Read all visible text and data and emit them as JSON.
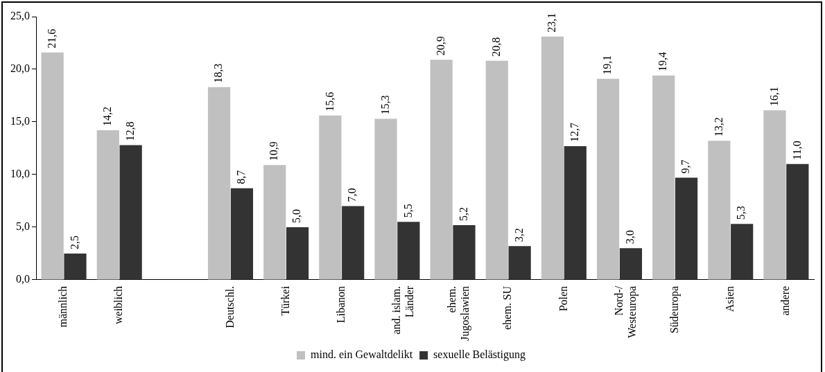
{
  "chart_data": {
    "type": "bar",
    "categories": [
      "männlich",
      "weiblich",
      null,
      "Deutschl.",
      "Türkei",
      "Libanon",
      "and. islam.\nLänder",
      "ehem.\nJugoslawien",
      "ehem. SU",
      "Polen",
      "Nord-/\nWesteuropa",
      "Südeuropa",
      "Asien",
      "andere"
    ],
    "series": [
      {
        "name": "mind. ein Gewaltdelikt",
        "color": "#c0c0c0",
        "values": [
          21.6,
          14.2,
          null,
          18.3,
          10.9,
          15.6,
          15.3,
          20.9,
          20.8,
          23.1,
          19.1,
          19.4,
          13.2,
          16.1
        ],
        "value_labels": [
          "21,6",
          "14,2",
          null,
          "18,3",
          "10,9",
          "15,6",
          "15,3",
          "20,9",
          "20,8",
          "23,1",
          "19,1",
          "19,4",
          "13,2",
          "16,1"
        ]
      },
      {
        "name": "sexuelle Belästigung",
        "color": "#333333",
        "values": [
          2.5,
          12.8,
          null,
          8.7,
          5.0,
          7.0,
          5.5,
          5.2,
          3.2,
          12.7,
          3.0,
          9.7,
          5.3,
          11.0
        ],
        "value_labels": [
          "2,5",
          "12,8",
          null,
          "8,7",
          "5,0",
          "7,0",
          "5,5",
          "5,2",
          "3,2",
          "12,7",
          "3,0",
          "9,7",
          "5,3",
          "11,0"
        ]
      }
    ],
    "ylim": [
      0,
      25
    ],
    "yticks": [
      {
        "value": 0,
        "label": "0,0"
      },
      {
        "value": 5,
        "label": "5,0"
      },
      {
        "value": 10,
        "label": "10,0"
      },
      {
        "value": 15,
        "label": "15,0"
      },
      {
        "value": 20,
        "label": "20,0"
      },
      {
        "value": 25,
        "label": "25,0"
      }
    ],
    "grid": false,
    "legend": "bottom"
  }
}
